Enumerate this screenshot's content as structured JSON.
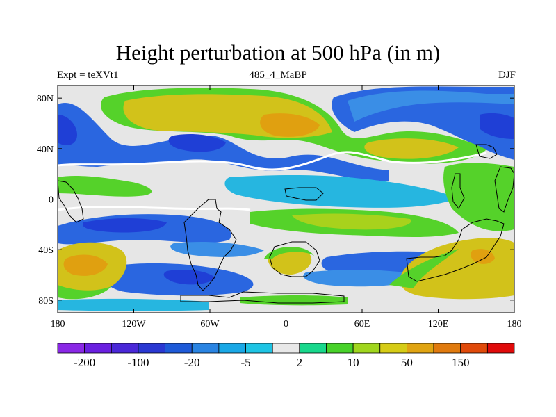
{
  "title": "Height perturbation at 500 hPa (in m)",
  "subtitle_left": "Expt = teXVt1",
  "subtitle_center": "485_4_MaBP",
  "subtitle_right": "DJF",
  "colors": {
    "background": "#e6e6e6",
    "deep_blue": "#1f3fd6",
    "blue": "#2a66e0",
    "mid_blue": "#3a8ee6",
    "light_blue": "#26b6e0",
    "white_band": "#ffffff",
    "teal": "#1ed98a",
    "green": "#55d22a",
    "yellow_green": "#a8d21c",
    "yellow": "#d2c21a",
    "orange": "#e0a010",
    "land_outline": "#000000"
  },
  "map": {
    "y_ticks": [
      {
        "label": "80N",
        "lat": 80
      },
      {
        "label": "40N",
        "lat": 40
      },
      {
        "label": "0",
        "lat": 0
      },
      {
        "label": "40S",
        "lat": -40
      },
      {
        "label": "80S",
        "lat": -80
      }
    ],
    "x_ticks": [
      {
        "label": "180",
        "lon": -180
      },
      {
        "label": "120W",
        "lon": -120
      },
      {
        "label": "60W",
        "lon": -60
      },
      {
        "label": "0",
        "lon": 0
      },
      {
        "label": "60E",
        "lon": 60
      },
      {
        "label": "120E",
        "lon": 120
      },
      {
        "label": "180",
        "lon": 180
      }
    ]
  },
  "colorbar": {
    "colors": [
      "#8a28e6",
      "#6a20e0",
      "#4a28d8",
      "#2a38d2",
      "#1e5ad8",
      "#2a84e2",
      "#1aa8e6",
      "#1ec4e4",
      "#e8e8e8",
      "#18d88c",
      "#48d22a",
      "#a0d61e",
      "#d6cc16",
      "#e0a412",
      "#e07a0e",
      "#e04a0a",
      "#e00a0a"
    ],
    "labels": [
      {
        "text": "-200",
        "index": 1
      },
      {
        "text": "-100",
        "index": 3
      },
      {
        "text": "-20",
        "index": 5
      },
      {
        "text": "-5",
        "index": 7
      },
      {
        "text": "2",
        "index": 9
      },
      {
        "text": "10",
        "index": 11
      },
      {
        "text": "50",
        "index": 13
      },
      {
        "text": "150",
        "index": 15
      }
    ]
  }
}
